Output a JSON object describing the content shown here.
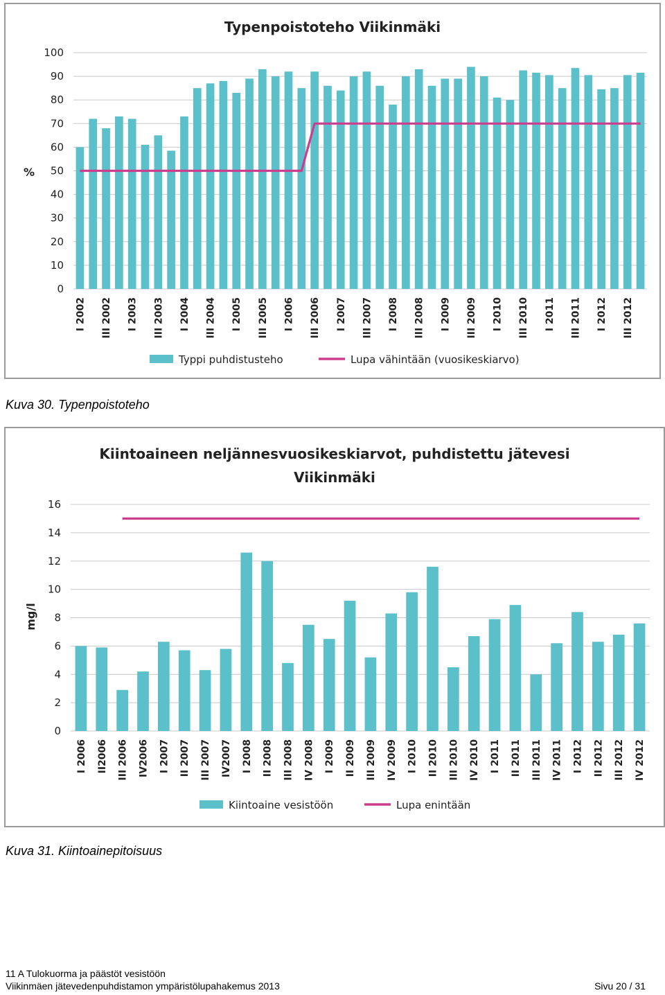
{
  "charts": {
    "chart_data": [
      {
        "type": "bar",
        "title": "Typenpoistoteho Viikinmäki",
        "ylabel": "%",
        "ylim": [
          0,
          100
        ],
        "yticks": [
          0,
          10,
          20,
          30,
          40,
          50,
          60,
          70,
          80,
          90,
          100
        ],
        "grid": true,
        "legend_position": "bottom",
        "categories": [
          "I 2002",
          "II 2002",
          "III 2002",
          "IV 2002",
          "I 2003",
          "II 2003",
          "III 2003",
          "IV 2003",
          "I 2004",
          "II 2004",
          "III 2004",
          "IV 2004",
          "I 2005",
          "II 2005",
          "III 2005",
          "IV 2005",
          "I 2006",
          "II 2006",
          "III 2006",
          "IV 2006",
          "I 2007",
          "II 2007",
          "III 2007",
          "IV 2007",
          "I 2008",
          "II 2008",
          "III 2008",
          "IV 2008",
          "I 2009",
          "II 2009",
          "III 2009",
          "IV 2009",
          "I 2010",
          "II 2010",
          "III 2010",
          "IV 2010",
          "I 2011",
          "II 2011",
          "III 2011",
          "IV 2011",
          "I 2012",
          "II 2012",
          "III 2012",
          "IV 2012"
        ],
        "category_labels": [
          "I 2002",
          "",
          "III 2002",
          "",
          "I 2003",
          "",
          "III 2003",
          "",
          "I 2004",
          "",
          "III 2004",
          "",
          "I 2005",
          "",
          "III 2005",
          "",
          "I 2006",
          "",
          "III 2006",
          "",
          "I 2007",
          "",
          "III 2007",
          "",
          "I 2008",
          "",
          "III 2008",
          "",
          "I 2009",
          "",
          "III 2009",
          "",
          "I 2010",
          "",
          "III 2010",
          "",
          "I 2011",
          "",
          "III 2011",
          "",
          "I 2012",
          "",
          "III 2012",
          ""
        ],
        "series": [
          {
            "name": "Typpi  puhdistusteho",
            "type": "bar",
            "color": "#5bc0ca",
            "values": [
              60,
              72,
              68,
              73,
              72,
              61,
              65,
              58.5,
              73,
              85,
              87,
              88,
              83,
              89,
              93,
              90,
              92,
              85,
              92,
              86,
              84,
              90,
              92,
              86,
              78,
              90,
              93,
              86,
              89,
              89,
              94,
              90,
              81,
              80,
              92.5,
              91.5,
              90.5,
              85,
              93.5,
              90.5,
              84.5,
              85,
              90.5,
              91.5
            ]
          },
          {
            "name": "Lupa vähintään (vuosikeskiarvo)",
            "type": "line",
            "color": "#cc3d8e",
            "values": [
              50,
              50,
              50,
              50,
              50,
              50,
              50,
              50,
              50,
              50,
              50,
              50,
              50,
              50,
              50,
              50,
              50,
              50,
              70,
              70,
              70,
              70,
              70,
              70,
              70,
              70,
              70,
              70,
              70,
              70,
              70,
              70,
              70,
              70,
              70,
              70,
              70,
              70,
              70,
              70,
              70,
              70,
              70,
              70
            ]
          }
        ]
      },
      {
        "type": "bar",
        "title": "Kiintoaineen neljännesvuosikeskiarvot, puhdistettu jätevesi Viikinmäki",
        "title_lines": [
          "Kiintoaineen neljännesvuosikeskiarvot, puhdistettu jätevesi",
          "Viikinmäki"
        ],
        "ylabel": "mg/l",
        "ylim": [
          0,
          16
        ],
        "yticks": [
          0,
          2,
          4,
          6,
          8,
          10,
          12,
          14,
          16
        ],
        "grid": true,
        "legend_position": "bottom",
        "categories": [
          "I 2006",
          "II2006",
          "III 2006",
          "IV2006",
          "I 2007",
          "II 2007",
          "III 2007",
          "IV2007",
          "I 2008",
          "II 2008",
          "III 2008",
          "IV 2008",
          "I 2009",
          "II 2009",
          "III 2009",
          "IV 2009",
          "I 2010",
          "II 2010",
          "III 2010",
          "IV 2010",
          "I 2011",
          "II 2011",
          "III 2011",
          "IV 2011",
          "I 2012",
          "II 2012",
          "III 2012",
          "IV 2012"
        ],
        "category_labels": [
          "I 2006",
          "II2006",
          "III 2006",
          "IV2006",
          "I 2007",
          "II 2007",
          "III 2007",
          "IV2007",
          "I 2008",
          "II 2008",
          "III 2008",
          "IV 2008",
          "I 2009",
          "II 2009",
          "III 2009",
          "IV 2009",
          "I 2010",
          "II 2010",
          "III 2010",
          "IV 2010",
          "I 2011",
          "II 2011",
          "III 2011",
          "IV 2011",
          "I 2012",
          "II 2012",
          "III 2012",
          "IV 2012"
        ],
        "series": [
          {
            "name": "Kiintoaine vesistöön",
            "type": "bar",
            "color": "#5bc0ca",
            "values": [
              6.0,
              5.9,
              2.9,
              4.2,
              6.3,
              5.7,
              4.3,
              5.8,
              12.6,
              12.0,
              4.8,
              7.5,
              6.5,
              9.2,
              5.2,
              8.3,
              9.8,
              11.6,
              4.5,
              6.7,
              7.9,
              8.9,
              4.0,
              6.2,
              8.4,
              6.3,
              6.8,
              7.6
            ]
          },
          {
            "name": "Lupa enintään",
            "type": "line",
            "color": "#cc3d8e",
            "values": [
              null,
              null,
              15,
              15,
              15,
              15,
              15,
              15,
              15,
              15,
              15,
              15,
              15,
              15,
              15,
              15,
              15,
              15,
              15,
              15,
              15,
              15,
              15,
              15,
              15,
              15,
              15,
              15
            ]
          }
        ]
      }
    ]
  },
  "captions": {
    "fig30": "Kuva 30. Typenpoistoteho",
    "fig31": "Kuva 31. Kiintoainepitoisuus"
  },
  "footer": {
    "line1": "11 A Tulokuorma ja päästöt vesistöön",
    "line2": "Viikinmäen jätevedenpuhdistamon ympäristölupahakemus 2013",
    "page": "Sivu 20 / 31"
  }
}
